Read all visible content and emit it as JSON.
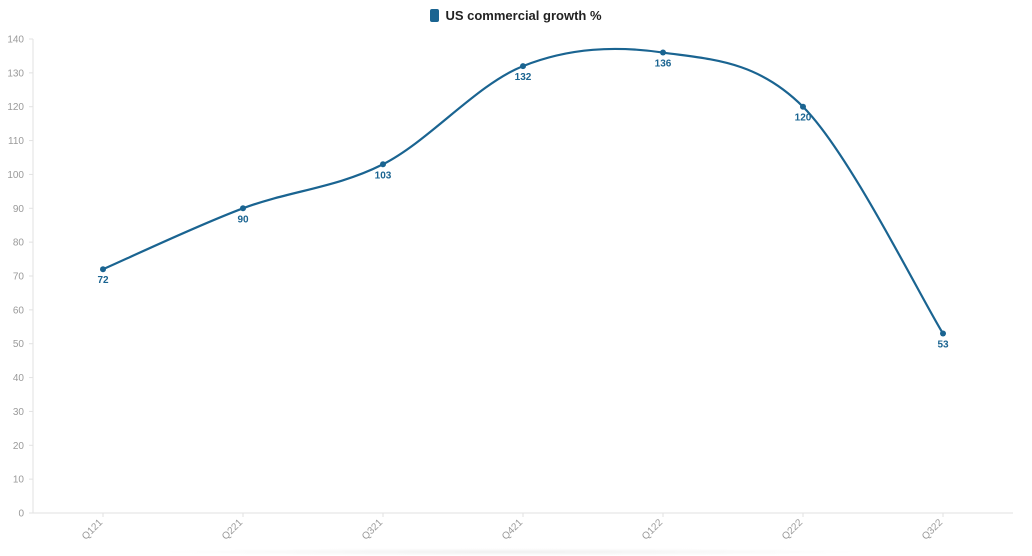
{
  "legend": {
    "label": "US commercial growth %",
    "color": "#1a6491"
  },
  "chart_data": {
    "type": "line",
    "title": "",
    "xlabel": "",
    "ylabel": "",
    "categories": [
      "Q121",
      "Q221",
      "Q321",
      "Q421",
      "Q122",
      "Q222",
      "Q322"
    ],
    "series": [
      {
        "name": "US commercial growth %",
        "values": [
          72,
          90,
          103,
          132,
          136,
          120,
          53
        ],
        "color": "#1a6491"
      }
    ],
    "ylim": [
      0,
      140
    ],
    "yticks": [
      0,
      10,
      20,
      30,
      40,
      50,
      60,
      70,
      80,
      90,
      100,
      110,
      120,
      130,
      140
    ],
    "grid": false,
    "smooth": true,
    "data_labels": true,
    "legend_position": "top-center",
    "x_tick_rotation": "-45deg"
  }
}
